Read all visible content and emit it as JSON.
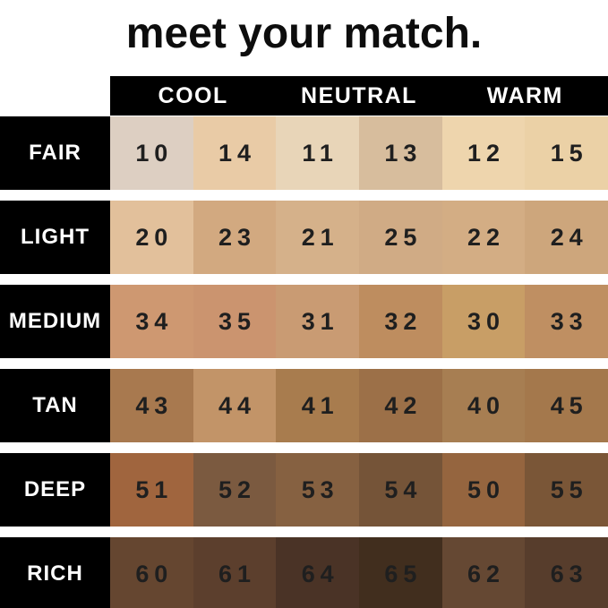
{
  "title": "meet your match.",
  "columns": [
    {
      "label": "COOL"
    },
    {
      "label": "NEUTRAL"
    },
    {
      "label": "WARM"
    }
  ],
  "rows": [
    {
      "label": "FAIR",
      "swatches": [
        {
          "num": "10",
          "color": "#ddcfc2"
        },
        {
          "num": "14",
          "color": "#e9cba6"
        },
        {
          "num": "11",
          "color": "#e8d5b8"
        },
        {
          "num": "13",
          "color": "#d7bd9d"
        },
        {
          "num": "12",
          "color": "#eed5ad"
        },
        {
          "num": "15",
          "color": "#ebd1a6"
        }
      ]
    },
    {
      "label": "LIGHT",
      "swatches": [
        {
          "num": "20",
          "color": "#e2c09b"
        },
        {
          "num": "23",
          "color": "#d2a980"
        },
        {
          "num": "21",
          "color": "#d5b18a"
        },
        {
          "num": "25",
          "color": "#d0ab85"
        },
        {
          "num": "22",
          "color": "#d3ad84"
        },
        {
          "num": "24",
          "color": "#cda67c"
        }
      ]
    },
    {
      "label": "MEDIUM",
      "swatches": [
        {
          "num": "34",
          "color": "#ce9871"
        },
        {
          "num": "35",
          "color": "#cb946f"
        },
        {
          "num": "31",
          "color": "#c99b73"
        },
        {
          "num": "32",
          "color": "#be8d5f"
        },
        {
          "num": "30",
          "color": "#c89e66"
        },
        {
          "num": "33",
          "color": "#bf8f62"
        }
      ]
    },
    {
      "label": "TAN",
      "swatches": [
        {
          "num": "43",
          "color": "#a8794f"
        },
        {
          "num": "44",
          "color": "#c29468"
        },
        {
          "num": "41",
          "color": "#a87c4e"
        },
        {
          "num": "42",
          "color": "#9c7048"
        },
        {
          "num": "40",
          "color": "#a77e52"
        },
        {
          "num": "45",
          "color": "#a4784c"
        }
      ]
    },
    {
      "label": "DEEP",
      "swatches": [
        {
          "num": "51",
          "color": "#a0653e"
        },
        {
          "num": "52",
          "color": "#7b5a40"
        },
        {
          "num": "53",
          "color": "#866141"
        },
        {
          "num": "54",
          "color": "#755438"
        },
        {
          "num": "50",
          "color": "#95653f"
        },
        {
          "num": "55",
          "color": "#7a5637"
        }
      ]
    },
    {
      "label": "RICH",
      "swatches": [
        {
          "num": "60",
          "color": "#654630"
        },
        {
          "num": "61",
          "color": "#5c3f2d"
        },
        {
          "num": "64",
          "color": "#4a3326"
        },
        {
          "num": "65",
          "color": "#412e1e"
        },
        {
          "num": "62",
          "color": "#654833"
        },
        {
          "num": "63",
          "color": "#573d2c"
        }
      ]
    }
  ],
  "colors": {
    "page_background": "#ffffff",
    "bar_background": "#000000",
    "bar_text": "#ffffff",
    "number_text": "#1f1f1f",
    "title_text": "#0d0d0d"
  },
  "chart_data": {
    "type": "table",
    "title": "meet your match.",
    "column_groups": [
      "COOL",
      "NEUTRAL",
      "WARM"
    ],
    "columns_per_group": 2,
    "row_labels": [
      "FAIR",
      "LIGHT",
      "MEDIUM",
      "TAN",
      "DEEP",
      "RICH"
    ],
    "values": [
      [
        10,
        14,
        11,
        13,
        12,
        15
      ],
      [
        20,
        23,
        21,
        25,
        22,
        24
      ],
      [
        34,
        35,
        31,
        32,
        30,
        33
      ],
      [
        43,
        44,
        41,
        42,
        40,
        45
      ],
      [
        51,
        52,
        53,
        54,
        50,
        55
      ],
      [
        60,
        61,
        64,
        65,
        62,
        63
      ]
    ],
    "cell_colors": [
      [
        "#ddcfc2",
        "#e9cba6",
        "#e8d5b8",
        "#d7bd9d",
        "#eed5ad",
        "#ebd1a6"
      ],
      [
        "#e2c09b",
        "#d2a980",
        "#d5b18a",
        "#d0ab85",
        "#d3ad84",
        "#cda67c"
      ],
      [
        "#ce9871",
        "#cb946f",
        "#c99b73",
        "#be8d5f",
        "#c89e66",
        "#bf8f62"
      ],
      [
        "#a8794f",
        "#c29468",
        "#a87c4e",
        "#9c7048",
        "#a77e52",
        "#a4784c"
      ],
      [
        "#a0653e",
        "#7b5a40",
        "#866141",
        "#755438",
        "#95653f",
        "#7a5637"
      ],
      [
        "#654630",
        "#5c3f2d",
        "#4a3326",
        "#412e1e",
        "#654833",
        "#573d2c"
      ]
    ]
  }
}
